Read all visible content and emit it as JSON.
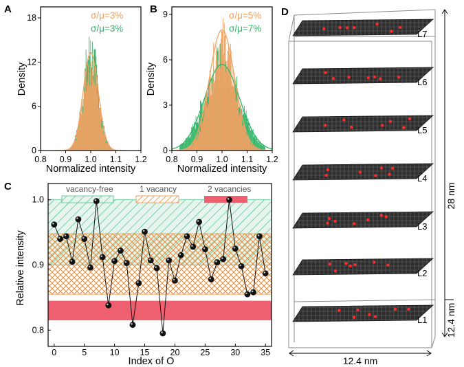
{
  "colors": {
    "orange": "#f2a061",
    "green": "#2fb567",
    "red": "#ee5f70",
    "greenHatch": "#4fbf8f",
    "orangeHatch": "#e9903f",
    "point": "#111111",
    "layerFill": "#3a3a3a"
  },
  "chart_data": [
    {
      "panel": "A",
      "type": "bar",
      "xlabel": "Normalized intensity",
      "ylabel": "Density",
      "xlim": [
        0.8,
        1.2
      ],
      "ylim": [
        0,
        19.5
      ],
      "xticks": [
        "0.8",
        "0.9",
        "1.0",
        "1.1",
        "1.2"
      ],
      "yticks": [
        "0",
        "6",
        "12",
        "18"
      ],
      "annotations": [
        {
          "text": "σ/μ=3%",
          "series": "orange"
        },
        {
          "text": "σ/μ=3%",
          "series": "green"
        }
      ],
      "series": [
        {
          "name": "orange",
          "mean": 1.0,
          "sd": 0.03
        },
        {
          "name": "green",
          "mean": 1.0,
          "sd": 0.03
        }
      ]
    },
    {
      "panel": "B",
      "type": "bar",
      "xlabel": "Normalized intensity",
      "ylabel": "Density",
      "xlim": [
        0.8,
        1.2
      ],
      "ylim": [
        0,
        9.5
      ],
      "xticks": [
        "0.8",
        "0.9",
        "1.0",
        "1.1",
        "1.2"
      ],
      "yticks": [
        "0",
        "3",
        "6",
        "9"
      ],
      "annotations": [
        {
          "text": "σ/μ=5%",
          "series": "orange"
        },
        {
          "text": "σ/μ=7%",
          "series": "green"
        }
      ],
      "series": [
        {
          "name": "orange",
          "mean": 1.0,
          "sd": 0.05
        },
        {
          "name": "green",
          "mean": 1.0,
          "sd": 0.07
        }
      ]
    },
    {
      "panel": "C",
      "type": "line",
      "xlabel": "Index of O",
      "ylabel": "Relative intensity",
      "xlim": [
        -1,
        36
      ],
      "ylim": [
        0.775,
        1.025
      ],
      "xticks": [
        "0",
        "5",
        "10",
        "15",
        "20",
        "25",
        "30",
        "35"
      ],
      "yticks": [
        "0.8",
        "0.9",
        "1.0"
      ],
      "legend": [
        "vacancy-free",
        "1 vacancy",
        "2 vacancies"
      ],
      "bands": [
        {
          "name": "vacancy-free",
          "range": [
            0.9,
            1.0
          ]
        },
        {
          "name": "1 vacancy",
          "range": [
            0.855,
            0.948
          ]
        },
        {
          "name": "2 vacancies",
          "range": [
            0.815,
            0.845
          ]
        }
      ],
      "x": [
        0,
        1,
        2,
        3,
        4,
        5,
        6,
        7,
        8,
        9,
        10,
        11,
        12,
        13,
        14,
        15,
        16,
        17,
        18,
        19,
        20,
        21,
        22,
        23,
        24,
        25,
        26,
        27,
        28,
        29,
        30,
        31,
        32,
        33,
        34,
        35
      ],
      "values": [
        0.962,
        0.94,
        0.944,
        0.905,
        0.97,
        0.94,
        0.896,
        0.998,
        0.912,
        0.838,
        0.906,
        0.922,
        0.903,
        0.808,
        0.872,
        0.951,
        0.907,
        0.895,
        0.795,
        0.907,
        0.876,
        0.915,
        0.944,
        0.928,
        0.966,
        0.924,
        0.878,
        0.904,
        0.909,
        1.0,
        0.925,
        0.898,
        0.855,
        0.858,
        0.944,
        0.887
      ]
    }
  ],
  "panel_d": {
    "label": "D",
    "layers": [
      "L7",
      "L6",
      "L5",
      "L4",
      "L3",
      "L2",
      "L1"
    ],
    "height_label": "28 nm",
    "layer_height_label": "12.4 nm",
    "width_label": "12.4 nm"
  }
}
